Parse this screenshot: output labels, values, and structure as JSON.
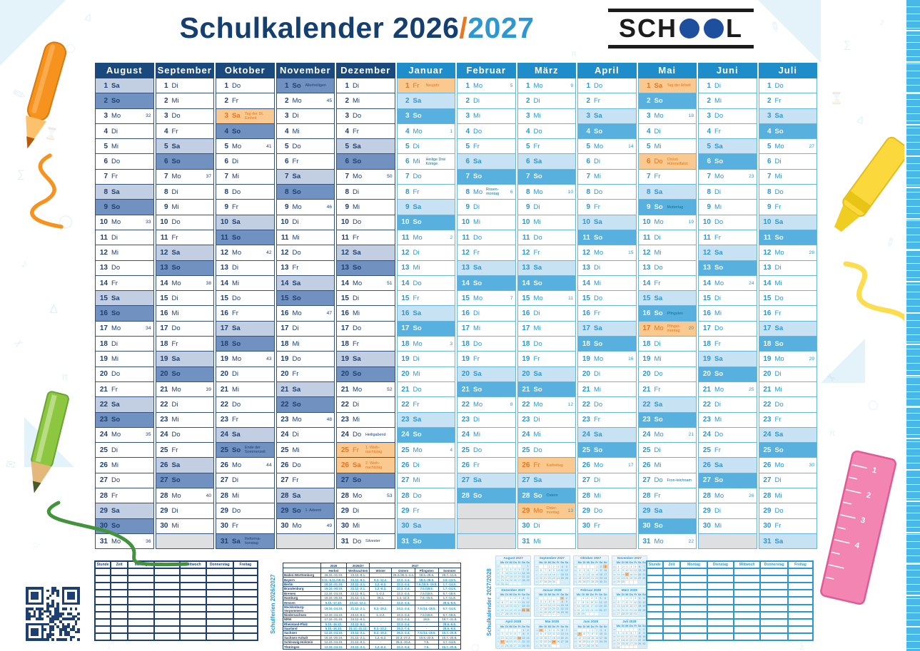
{
  "title": {
    "main": "Schulkalender",
    "year_left": "2026",
    "separator": "/",
    "year_right": "2027"
  },
  "logo": {
    "pre": "SCH",
    "post": "L"
  },
  "weekday_names": [
    "Mo",
    "Di",
    "Mi",
    "Do",
    "Fr",
    "Sa",
    "So"
  ],
  "side_labels": {
    "left": "Schulferien 2026/2027",
    "right": "Schulkalender 2027/2028"
  },
  "months": [
    {
      "name": "August",
      "scheme": "dark",
      "start": 5,
      "len": 31,
      "wk_first": 32,
      "specials": {}
    },
    {
      "name": "September",
      "scheme": "dark",
      "start": 1,
      "len": 30,
      "wk_first": 37,
      "specials": {}
    },
    {
      "name": "Oktober",
      "scheme": "dark",
      "start": 3,
      "len": 31,
      "wk_first": 41,
      "specials": {
        "3": {
          "t": "hol",
          "label": "Tag der Dt. Einheit"
        },
        "25": {
          "label": "Ende der Sommerzeit"
        },
        "31": {
          "t": "so",
          "label": "Reforma-tionstag"
        }
      }
    },
    {
      "name": "November",
      "scheme": "dark",
      "start": 6,
      "len": 30,
      "wk_first": 45,
      "specials": {
        "1": {
          "label": "Allerheiligen"
        },
        "29": {
          "label": "1. Advent"
        }
      }
    },
    {
      "name": "Dezember",
      "scheme": "dark",
      "start": 1,
      "len": 31,
      "wk_first": 50,
      "specials": {
        "24": {
          "label": "Heiligabend"
        },
        "25": {
          "t": "hol",
          "label": "1. Weih-nachtstag"
        },
        "26": {
          "t": "hol",
          "label": "2. Weih-nachtstag"
        },
        "31": {
          "label": "Silvester"
        }
      }
    },
    {
      "name": "Januar",
      "scheme": "light",
      "start": 4,
      "len": 31,
      "wk_first": 1,
      "specials": {
        "1": {
          "t": "hol",
          "label": "Neujahr"
        },
        "6": {
          "label": "Heilige Drei Könige"
        }
      }
    },
    {
      "name": "Februar",
      "scheme": "light",
      "start": 0,
      "len": 28,
      "wk_first": 5,
      "specials": {
        "8": {
          "label": "Rosen-montag"
        }
      }
    },
    {
      "name": "März",
      "scheme": "light",
      "start": 0,
      "len": 31,
      "wk_first": 9,
      "specials": {
        "26": {
          "t": "hol",
          "label": "Karfreitag"
        },
        "28": {
          "label": "Ostern"
        },
        "29": {
          "t": "hol",
          "label": "Oster-montag"
        }
      }
    },
    {
      "name": "April",
      "scheme": "light",
      "start": 3,
      "len": 30,
      "wk_first": 14,
      "specials": {}
    },
    {
      "name": "Mai",
      "scheme": "light",
      "start": 5,
      "len": 31,
      "wk_first": 18,
      "specials": {
        "1": {
          "t": "hol",
          "label": "Tag der Arbeit"
        },
        "6": {
          "t": "hol",
          "label": "Christi Himmelfahrt"
        },
        "9": {
          "label": "Muttertag"
        },
        "16": {
          "label": "Pfingsten"
        },
        "17": {
          "t": "hol",
          "label": "Pfingst-montag"
        },
        "27": {
          "label": "Fron-leichnam"
        }
      }
    },
    {
      "name": "Juni",
      "scheme": "light",
      "start": 1,
      "len": 30,
      "wk_first": 23,
      "specials": {}
    },
    {
      "name": "Juli",
      "scheme": "light",
      "start": 3,
      "len": 31,
      "wk_first": 27,
      "specials": {}
    }
  ],
  "timetable": {
    "headers": [
      "Stunde",
      "Zeit",
      "Montag",
      "Dienstag",
      "Mittwoch",
      "Donnerstag",
      "Freitag"
    ],
    "row_count": 10
  },
  "ferien_table": {
    "year_row": [
      "2026",
      "2026/27",
      "2027"
    ],
    "season_row": [
      "Herbst",
      "Weihnachten",
      "Winter",
      "Ostern",
      "Pfingsten",
      "Sommer"
    ],
    "rows": [
      [
        "Baden-Württemberg",
        "26.10.-31.10.",
        "23.12.-9.1.",
        "-",
        "29.3./30.3.-3.4.",
        "18.5.-29.5.",
        "29.7.-11.9."
      ],
      [
        "Bayern",
        "2.11.-6.11./18.11.",
        "24.12.-8.1.",
        "8.2.-12.2.",
        "22.3.-3.4.",
        "18.5.-28.5.",
        "2.8.-13.9."
      ],
      [
        "Berlin",
        "19.10.-31.10.",
        "23.12.-2.1.",
        "1.2.-6.2.",
        "22.3.-3.4.",
        "7.5./18.5.-19.5.",
        "1.7.-14.8."
      ],
      [
        "Brandenburg",
        "19.10.-30.10.",
        "22.12.-2.1.",
        "1.2.-6.2.",
        "22.3.-3.4.",
        "7.5./18.5.",
        "1.7.-14.8."
      ],
      [
        "Bremen",
        "12.10.-24.10.",
        "23.12.-8.1.",
        "1.-2.2.",
        "22.3.-3.4.",
        "7.5./18.5.",
        "8.7.-18.8."
      ],
      [
        "Hamburg",
        "19.10.-30.10.",
        "21.12.-1.1.",
        "29.1.",
        "1.3.-12.3.",
        "7.5.-15.5.",
        "1.7.-11.8."
      ],
      [
        "Hessen",
        "5.10.-17.10.",
        "23.12.-12.1.",
        "-",
        "22.3.-3.4.",
        "-",
        "28.6.-6.8."
      ],
      [
        "Mecklenburg-Vorpommern",
        "19.10.-24.10.",
        "21.12.-2.1.",
        "8.2.-19.2.",
        "24.3.-3.4.",
        "7.5./14.-18.5.",
        "5.7.-14.8."
      ],
      [
        "Niedersachsen",
        "12.10.-24.10.",
        "23.12.-8.1.",
        "1.-2.2.",
        "22.3.-3.4.",
        "7.5./18.5.",
        "8.7.-18.8."
      ],
      [
        "NRW",
        "17.10.-31.10.",
        "23.12.-6.1.",
        "-",
        "22.3.-3.4.",
        "18.5.",
        "19.7.-31.8."
      ],
      [
        "Rheinland-Pfalz",
        "5.10.-16.10.",
        "23.12.-8.1.",
        "-",
        "22.3.-3.4.",
        "-",
        "28.6.-6.8."
      ],
      [
        "Saarland",
        "5.10.-16.10.",
        "21.12.-31.12.",
        "8.2.-13.2.",
        "26.3.-7.4.",
        "-",
        "28.6.-6.8."
      ],
      [
        "Sachsen",
        "12.10.-24.10.",
        "23.12.-2.1.",
        "8.2.-19.2.",
        "26.3.-3.4.",
        "7.5./14.-18.5.",
        "10.7.-20.8."
      ],
      [
        "Sachsen-Anhalt",
        "19.10.-30.10.",
        "21.12.-2.1.",
        "1.2.-6.2.",
        "22.3.-27.3.",
        "10.5.-22.5.",
        "10.7.-20.8."
      ],
      [
        "Schleswig-Holstein",
        "12.10.-24.10.",
        "21.12.-6.1.",
        "-",
        "26.3.-10.4.",
        "7.5.",
        "3.7.-14.8."
      ],
      [
        "Thüringen",
        "12.10.-24.10.",
        "23.12.-2.1.",
        "1.2.-6.2.",
        "22.3.-3.4.",
        "7.5.",
        "10.7.-20.8."
      ]
    ]
  },
  "mini_calendars": [
    {
      "title": "August 2027",
      "start": 6,
      "len": 31,
      "wk_first": 31,
      "holidays": []
    },
    {
      "title": "September 2027",
      "start": 2,
      "len": 30,
      "wk_first": 36,
      "holidays": []
    },
    {
      "title": "Oktober 2027",
      "start": 4,
      "len": 31,
      "wk_first": 40,
      "holidays": [
        3
      ]
    },
    {
      "title": "November 2027",
      "start": 0,
      "len": 30,
      "wk_first": 44,
      "holidays": [
        17
      ]
    },
    {
      "title": "Dezember 2027",
      "start": 2,
      "len": 31,
      "wk_first": 49,
      "holidays": [
        25,
        26
      ]
    },
    {
      "title": "Januar 2028",
      "start": 5,
      "len": 31,
      "wk_first": 1,
      "holidays": [
        1
      ]
    },
    {
      "title": "Februar 2028",
      "start": 1,
      "len": 29,
      "wk_first": 6,
      "holidays": []
    },
    {
      "title": "März 2028",
      "start": 2,
      "len": 31,
      "wk_first": 10,
      "holidays": []
    },
    {
      "title": "April 2028",
      "start": 5,
      "len": 30,
      "wk_first": 14,
      "holidays": [
        14,
        17
      ]
    },
    {
      "title": "Mai 2028",
      "start": 0,
      "len": 31,
      "wk_first": 18,
      "holidays": [
        1,
        25
      ]
    },
    {
      "title": "Juni 2028",
      "start": 3,
      "len": 30,
      "wk_first": 23,
      "holidays": [
        5
      ]
    },
    {
      "title": "Juli 2028",
      "start": 5,
      "len": 31,
      "wk_first": 27,
      "holidays": []
    }
  ],
  "colors": {
    "navy": "#1d3f72",
    "navy_header": "#1a4a7d",
    "cyan": "#2d97d1",
    "cyan_header": "#1f8dca",
    "sat_2026": "#c2cee2",
    "sun_2026": "#7191c1",
    "sat_2027": "#c6e2f3",
    "sun_2027": "#57b0de",
    "holiday_bg": "#f9c98f",
    "holiday_text": "#e5761f",
    "empty_cell": "#dedfe1",
    "accent_orange": "#e87722",
    "logo_dot_blue": "#1d4f9e"
  },
  "decor_icons": [
    "pencil-orange-icon",
    "pencil-green-icon",
    "highlighter-yellow-icon",
    "ruler-pink-icon",
    "edge-ruler-icon",
    "qr-code"
  ]
}
